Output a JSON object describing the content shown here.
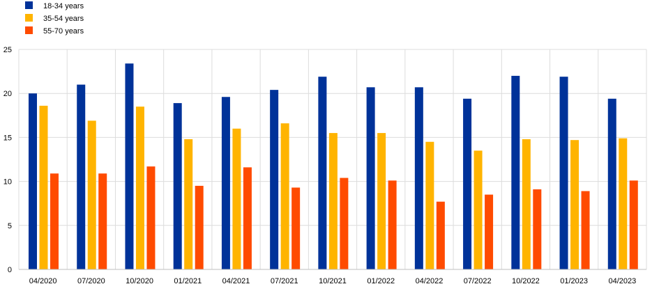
{
  "chart_data": {
    "type": "bar",
    "categories": [
      "04/2020",
      "07/2020",
      "10/2020",
      "01/2021",
      "04/2021",
      "07/2021",
      "10/2021",
      "01/2022",
      "04/2022",
      "07/2022",
      "10/2022",
      "01/2023",
      "04/2023"
    ],
    "series": [
      {
        "name": "18-34 years",
        "color": "#003299",
        "values": [
          20.0,
          21.0,
          23.4,
          18.9,
          19.6,
          20.4,
          21.9,
          20.7,
          20.7,
          19.4,
          22.0,
          21.9,
          19.4
        ]
      },
      {
        "name": "35-54 years",
        "color": "#FFB400",
        "values": [
          18.6,
          16.9,
          18.5,
          14.8,
          16.0,
          16.6,
          15.5,
          15.5,
          14.5,
          13.5,
          14.8,
          14.7,
          14.9
        ]
      },
      {
        "name": "55-70 years",
        "color": "#FF4B00",
        "values": [
          10.9,
          10.9,
          11.7,
          9.5,
          11.6,
          9.3,
          10.4,
          10.1,
          7.7,
          8.5,
          9.1,
          8.9,
          10.1
        ]
      }
    ],
    "ylim": [
      0,
      25
    ],
    "yticks": [
      "0",
      "5",
      "10",
      "15",
      "20",
      "25"
    ],
    "grid": true,
    "legend": "top-left"
  }
}
